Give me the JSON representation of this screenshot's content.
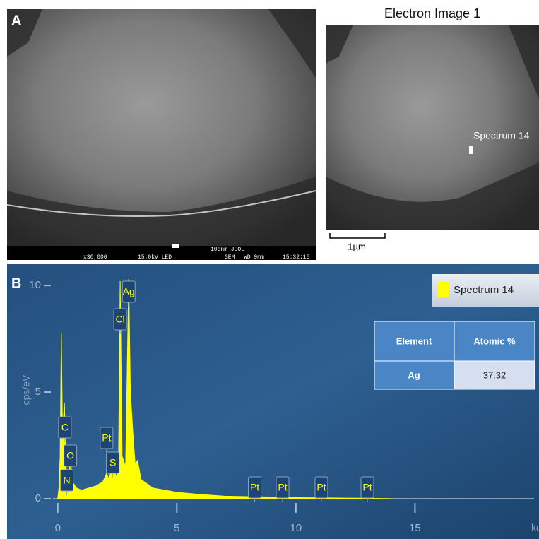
{
  "panel_a": {
    "label": "A",
    "sem_info": [
      "x30,000",
      "15.0kV LED",
      "100nm JEOL",
      "SEM",
      "WD 9mm",
      "15:32:18"
    ],
    "electron_image_title": "Electron Image 1",
    "spectrum_marker": "Spectrum 14",
    "scale_bar": "1µm"
  },
  "chart_data": {
    "type": "area",
    "panel_label": "B",
    "y_label": "cps/eV",
    "x_label": "keV",
    "xlim": [
      -0.2,
      20
    ],
    "ylim": [
      0,
      10.4
    ],
    "xticks": [
      0,
      5,
      10,
      15
    ],
    "yticks": [
      0,
      5,
      10
    ],
    "series": [
      {
        "name": "Spectrum 14",
        "color": "#ffff00",
        "x": [
          0,
          0.05,
          0.1,
          0.15,
          0.2,
          0.28,
          0.35,
          0.39,
          0.45,
          0.52,
          0.6,
          0.8,
          1.0,
          1.3,
          1.6,
          1.9,
          2.05,
          2.15,
          2.31,
          2.45,
          2.55,
          2.62,
          2.7,
          2.85,
          2.98,
          3.05,
          3.15,
          3.25,
          3.35,
          3.5,
          4.0,
          5.0,
          6.0,
          7.0,
          8.0,
          9.0,
          10.0,
          11.0,
          12.0,
          13.0,
          14.0
        ],
        "values": [
          0,
          0.5,
          2,
          7.8,
          3,
          4.5,
          1.5,
          1.2,
          0.6,
          2.4,
          0.8,
          0.5,
          0.4,
          0.5,
          0.6,
          0.8,
          1.2,
          0.9,
          1.7,
          1.0,
          1.5,
          10.2,
          2.0,
          1.5,
          10.3,
          5,
          3.2,
          1.6,
          1.8,
          0.9,
          0.5,
          0.3,
          0.2,
          0.12,
          0.1,
          0.08,
          0.05,
          0.04,
          0.03,
          0.02,
          0
        ]
      }
    ],
    "peak_labels": [
      {
        "label": "C",
        "x": 0.3
      },
      {
        "label": "O",
        "x": 0.53
      },
      {
        "label": "N",
        "x": 0.38
      },
      {
        "label": "Pt",
        "x": 2.05
      },
      {
        "label": "S",
        "x": 2.31
      },
      {
        "label": "Cl",
        "x": 2.62
      },
      {
        "label": "Ag",
        "x": 2.98
      },
      {
        "label": "Pt",
        "x": 8.27
      },
      {
        "label": "Pt",
        "x": 9.44
      },
      {
        "label": "Pt",
        "x": 11.07
      },
      {
        "label": "Pt",
        "x": 13.0
      }
    ],
    "table": {
      "header": [
        "Element",
        "Atomic %"
      ],
      "rows": [
        [
          "Ag",
          "37.32"
        ]
      ]
    }
  }
}
